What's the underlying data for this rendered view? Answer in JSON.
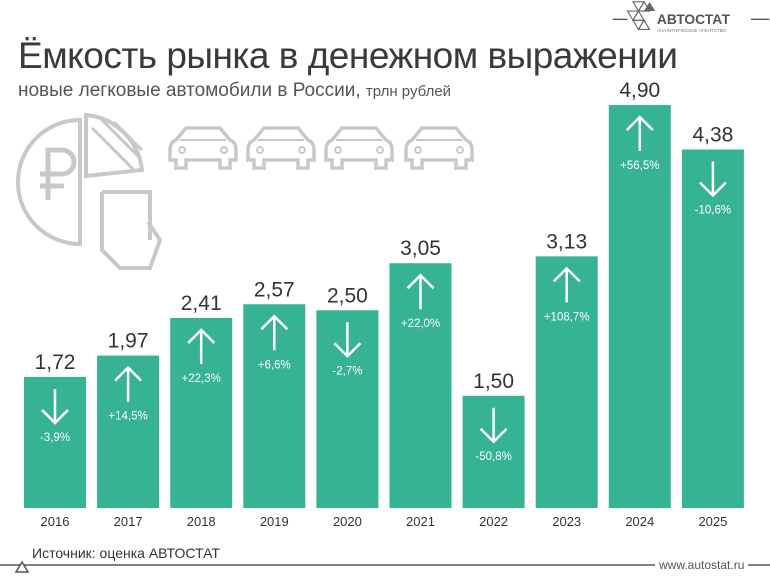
{
  "header": {
    "title": "Ёмкость рынка в денежном выражении",
    "subtitle": "новые легковые автомобили в России,",
    "unit": "трлн рублей"
  },
  "logo": {
    "name": "АВТОСТАТ",
    "tagline": "АНАЛИТИЧЕСКОЕ АГЕНТСТВО"
  },
  "footer": {
    "source": "Источник: оценка АВТОСТАТ",
    "site": "www.autostat.ru"
  },
  "colors": {
    "bar": "#36b392",
    "text": "#3a3a3a"
  },
  "chart_data": {
    "type": "bar",
    "categories": [
      "2016",
      "2017",
      "2018",
      "2019",
      "2020",
      "2021",
      "2022",
      "2023",
      "2024",
      "2025"
    ],
    "values": [
      1.72,
      1.97,
      2.41,
      2.57,
      2.5,
      3.05,
      1.5,
      3.13,
      4.9,
      4.38
    ],
    "value_labels": [
      "1,72",
      "1,97",
      "2,41",
      "2,57",
      "2,50",
      "3,05",
      "1,50",
      "3,13",
      "4,90",
      "4,38"
    ],
    "change_labels": [
      "-3,9%",
      "+14,5%",
      "+22,3%",
      "+6,6%",
      "-2,7%",
      "+22,0%",
      "-50,8%",
      "+108,7%",
      "+56,5%",
      "-10,6%"
    ],
    "title": "Ёмкость рынка в денежном выражении",
    "ylabel": "трлн рублей",
    "grid": false
  }
}
